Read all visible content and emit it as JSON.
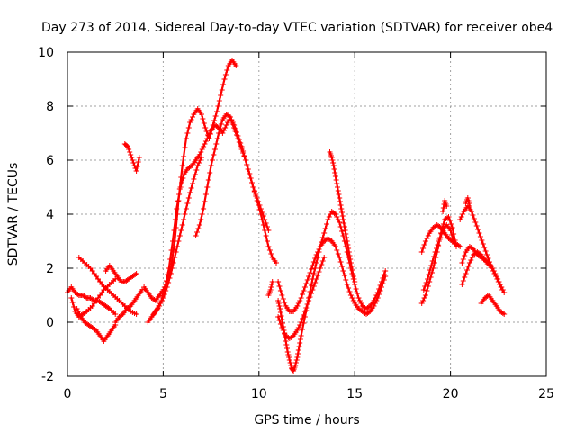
{
  "chart_data": {
    "type": "scatter",
    "title": "Day 273 of 2014, Sidereal Day-to-day VTEC variation (SDTVAR) for receiver obe4",
    "xlabel": "GPS time / hours",
    "ylabel": "SDTVAR / TECUs",
    "xlim": [
      0,
      25
    ],
    "ylim": [
      -2,
      10
    ],
    "xticks": [
      0,
      5,
      10,
      15,
      20,
      25
    ],
    "yticks": [
      -2,
      0,
      2,
      4,
      6,
      8,
      10
    ],
    "xtick_labels": [
      "0",
      "5",
      "10",
      "15",
      "20",
      "25"
    ],
    "ytick_labels": [
      "-2",
      "0",
      "2",
      "4",
      "6",
      "8",
      "10"
    ],
    "grid": true,
    "legend": "none",
    "marker": "+",
    "color": "#ff0000",
    "series": [
      {
        "x": [
          0.0,
          0.2,
          0.4,
          0.6,
          0.8,
          1.0,
          1.2,
          1.4,
          1.6,
          1.8,
          2.0,
          2.2,
          2.5
        ],
        "y": [
          1.1,
          1.3,
          1.1,
          1.0,
          1.0,
          0.9,
          0.9,
          0.8,
          0.8,
          0.7,
          0.6,
          0.5,
          0.3
        ]
      },
      {
        "x": [
          0.2,
          0.4,
          0.6,
          0.8,
          1.0,
          1.3,
          1.6,
          1.9,
          2.2,
          2.5
        ],
        "y": [
          0.9,
          0.4,
          0.2,
          0.3,
          0.4,
          0.6,
          0.9,
          1.2,
          1.4,
          1.6
        ]
      },
      {
        "x": [
          0.5,
          0.7,
          0.9,
          1.1,
          1.3,
          1.5,
          1.7,
          1.9,
          2.1,
          2.3,
          2.5
        ],
        "y": [
          0.5,
          0.2,
          0.0,
          -0.1,
          -0.2,
          -0.3,
          -0.5,
          -0.7,
          -0.5,
          -0.3,
          -0.1
        ]
      },
      {
        "x": [
          0.6,
          0.9,
          1.2,
          1.5,
          1.8,
          2.1,
          2.4,
          2.7,
          3.0,
          3.3,
          3.6
        ],
        "y": [
          2.4,
          2.2,
          2.0,
          1.7,
          1.4,
          1.2,
          1.0,
          0.8,
          0.6,
          0.4,
          0.3
        ]
      },
      {
        "x": [
          2.0,
          2.2,
          2.4,
          2.6,
          2.8,
          3.0,
          3.2,
          3.4,
          3.6
        ],
        "y": [
          1.9,
          2.1,
          1.9,
          1.7,
          1.5,
          1.5,
          1.6,
          1.7,
          1.8
        ]
      },
      {
        "x": [
          2.5,
          2.7,
          2.9,
          3.1,
          3.3,
          3.5,
          3.7,
          3.9
        ],
        "y": [
          0.0,
          0.2,
          0.3,
          0.5,
          0.6,
          0.8,
          1.0,
          1.2
        ]
      },
      {
        "x": [
          3.0,
          3.15,
          3.3,
          3.45,
          3.6,
          3.75
        ],
        "y": [
          6.6,
          6.5,
          6.2,
          5.9,
          5.6,
          6.1
        ]
      },
      {
        "x": [
          4.0,
          4.2,
          4.4,
          4.6,
          4.8,
          5.0,
          5.2,
          5.4,
          5.6,
          5.8,
          6.0,
          6.2,
          6.4,
          6.6,
          6.8,
          7.0,
          7.2,
          7.4,
          7.6,
          7.8,
          8.0,
          8.2,
          8.4,
          8.6,
          8.8
        ],
        "y": [
          1.3,
          1.1,
          0.9,
          0.8,
          1.0,
          1.2,
          1.5,
          2.0,
          3.0,
          4.5,
          5.8,
          6.8,
          7.4,
          7.7,
          7.9,
          7.7,
          7.2,
          6.8,
          7.3,
          7.8,
          8.4,
          9.0,
          9.5,
          9.7,
          9.5
        ]
      },
      {
        "x": [
          4.5,
          4.7,
          4.9,
          5.1,
          5.3,
          5.5,
          5.7,
          5.9,
          6.1,
          6.3,
          6.5,
          6.7,
          6.9,
          7.1,
          7.3,
          7.5,
          7.7,
          7.9,
          8.1,
          8.3,
          8.5,
          8.7,
          8.9,
          9.1,
          9.3,
          9.5,
          9.7,
          9.9,
          10.1,
          10.3,
          10.5
        ],
        "y": [
          0.3,
          0.5,
          0.8,
          1.3,
          2.0,
          3.0,
          4.2,
          5.0,
          5.5,
          5.7,
          5.8,
          6.0,
          6.2,
          6.5,
          6.8,
          7.1,
          7.3,
          7.2,
          7.0,
          7.3,
          7.6,
          7.2,
          6.8,
          6.4,
          6.0,
          5.5,
          5.0,
          4.6,
          4.2,
          3.8,
          3.4
        ]
      },
      {
        "x": [
          4.2,
          4.4,
          4.6,
          4.8,
          5.0,
          5.2,
          5.4,
          5.6,
          5.8,
          6.0,
          6.2,
          6.4,
          6.6,
          6.8,
          7.0
        ],
        "y": [
          0.0,
          0.2,
          0.4,
          0.6,
          0.9,
          1.3,
          1.8,
          2.4,
          3.0,
          3.6,
          4.2,
          4.8,
          5.3,
          5.8,
          6.1
        ]
      },
      {
        "x": [
          6.7,
          6.9,
          7.1,
          7.3,
          7.5,
          7.7,
          7.9,
          8.1,
          8.3,
          8.5,
          8.7,
          8.9,
          9.1,
          9.3,
          9.5,
          9.7,
          9.9,
          10.1,
          10.3,
          10.5,
          10.7,
          10.9
        ],
        "y": [
          3.2,
          3.6,
          4.2,
          5.0,
          5.8,
          6.4,
          7.0,
          7.5,
          7.7,
          7.6,
          7.3,
          6.9,
          6.5,
          6.0,
          5.5,
          5.0,
          4.5,
          4.0,
          3.4,
          2.8,
          2.4,
          2.2
        ]
      },
      {
        "x": [
          10.5,
          10.6,
          10.7
        ],
        "y": [
          1.0,
          1.2,
          1.5
        ]
      },
      {
        "x": [
          11.0,
          11.1,
          11.2,
          11.3,
          11.4,
          11.5,
          11.6,
          11.7,
          11.8,
          11.9,
          12.0,
          12.1,
          12.2,
          12.4,
          12.6,
          12.8,
          13.0,
          13.2,
          13.4,
          13.6,
          13.8,
          14.0,
          14.2,
          14.4,
          14.6,
          14.8,
          15.0,
          15.2,
          15.4,
          15.6,
          15.8,
          16.0,
          16.2,
          16.4,
          16.6
        ],
        "y": [
          0.8,
          0.5,
          0.1,
          -0.3,
          -0.7,
          -1.1,
          -1.4,
          -1.7,
          -1.8,
          -1.6,
          -1.3,
          -0.9,
          -0.5,
          0.2,
          0.9,
          1.6,
          2.2,
          2.8,
          3.3,
          3.8,
          4.1,
          4.0,
          3.7,
          3.2,
          2.6,
          2.0,
          1.4,
          0.9,
          0.6,
          0.5,
          0.6,
          0.8,
          1.1,
          1.5,
          1.9
        ]
      },
      {
        "x": [
          11.0,
          11.2,
          11.4,
          11.6,
          11.8,
          12.0,
          12.2,
          12.4,
          12.6,
          12.8,
          13.0,
          13.2,
          13.4,
          13.6,
          13.8,
          14.0,
          14.2,
          14.4,
          14.6,
          14.8,
          15.0,
          15.2,
          15.4,
          15.6,
          15.8,
          16.0,
          16.2,
          16.4,
          16.6
        ],
        "y": [
          1.5,
          1.0,
          0.6,
          0.4,
          0.4,
          0.6,
          0.9,
          1.3,
          1.7,
          2.1,
          2.5,
          2.8,
          3.0,
          3.1,
          3.0,
          2.8,
          2.4,
          1.9,
          1.4,
          1.0,
          0.7,
          0.5,
          0.4,
          0.3,
          0.4,
          0.6,
          0.9,
          1.3,
          1.7
        ]
      },
      {
        "x": [
          11.0,
          11.2,
          11.4,
          11.6,
          11.8,
          12.0,
          12.2,
          12.4,
          12.6,
          12.8,
          13.0,
          13.2,
          13.4
        ],
        "y": [
          0.2,
          -0.2,
          -0.5,
          -0.6,
          -0.5,
          -0.3,
          0.0,
          0.4,
          0.8,
          1.2,
          1.6,
          2.0,
          2.4
        ]
      },
      {
        "x": [
          13.7,
          13.8,
          13.9,
          14.0,
          14.1,
          14.2,
          14.3,
          14.4,
          14.5,
          14.6,
          14.7,
          14.8,
          14.9,
          15.0
        ],
        "y": [
          6.3,
          6.1,
          5.8,
          5.4,
          5.0,
          4.6,
          4.2,
          3.8,
          3.4,
          3.0,
          2.6,
          2.2,
          1.8,
          1.5
        ]
      },
      {
        "x": [
          18.5,
          18.7,
          18.9,
          19.1,
          19.3,
          19.5,
          19.7,
          19.9,
          20.1,
          20.3,
          20.5
        ],
        "y": [
          2.6,
          3.0,
          3.3,
          3.5,
          3.6,
          3.5,
          3.3,
          3.1,
          3.0,
          2.9,
          2.8
        ]
      },
      {
        "x": [
          18.6,
          18.8,
          19.0,
          19.2,
          19.4,
          19.6,
          19.8,
          20.0,
          20.2
        ],
        "y": [
          1.2,
          1.6,
          2.1,
          2.6,
          3.0,
          3.4,
          3.6,
          3.4,
          2.9
        ]
      },
      {
        "x": [
          18.5,
          18.7,
          18.9,
          19.1,
          19.3,
          19.5,
          19.7,
          19.9,
          20.1,
          20.3
        ],
        "y": [
          0.7,
          1.0,
          1.5,
          2.0,
          2.6,
          3.3,
          3.8,
          3.9,
          3.5,
          2.8
        ]
      },
      {
        "x": [
          19.6,
          19.7,
          19.8
        ],
        "y": [
          4.1,
          4.5,
          4.3
        ]
      },
      {
        "x": [
          20.5,
          20.7,
          20.9,
          21.1,
          21.3,
          21.5,
          21.7,
          21.9,
          22.1,
          22.3,
          22.5,
          22.7
        ],
        "y": [
          3.8,
          4.1,
          4.3,
          4.1,
          3.7,
          3.3,
          2.9,
          2.5,
          2.1,
          1.8,
          1.5,
          1.2
        ]
      },
      {
        "x": [
          20.6,
          20.8,
          21.0,
          21.2,
          21.4,
          21.6,
          21.8,
          22.0,
          22.2,
          22.4,
          22.6,
          22.8
        ],
        "y": [
          2.2,
          2.6,
          2.8,
          2.7,
          2.5,
          2.4,
          2.3,
          2.2,
          2.0,
          1.7,
          1.4,
          1.1
        ]
      },
      {
        "x": [
          20.6,
          20.8,
          21.0,
          21.2,
          21.4,
          21.6,
          21.8,
          22.0
        ],
        "y": [
          1.4,
          1.8,
          2.2,
          2.5,
          2.6,
          2.5,
          2.3,
          2.1
        ]
      },
      {
        "x": [
          21.6,
          21.8,
          22.0,
          22.2,
          22.4,
          22.6,
          22.8
        ],
        "y": [
          0.7,
          0.9,
          1.0,
          0.8,
          0.6,
          0.4,
          0.3
        ]
      },
      {
        "x": [
          20.8,
          20.9,
          21.0
        ],
        "y": [
          4.4,
          4.6,
          4.3
        ]
      }
    ]
  }
}
